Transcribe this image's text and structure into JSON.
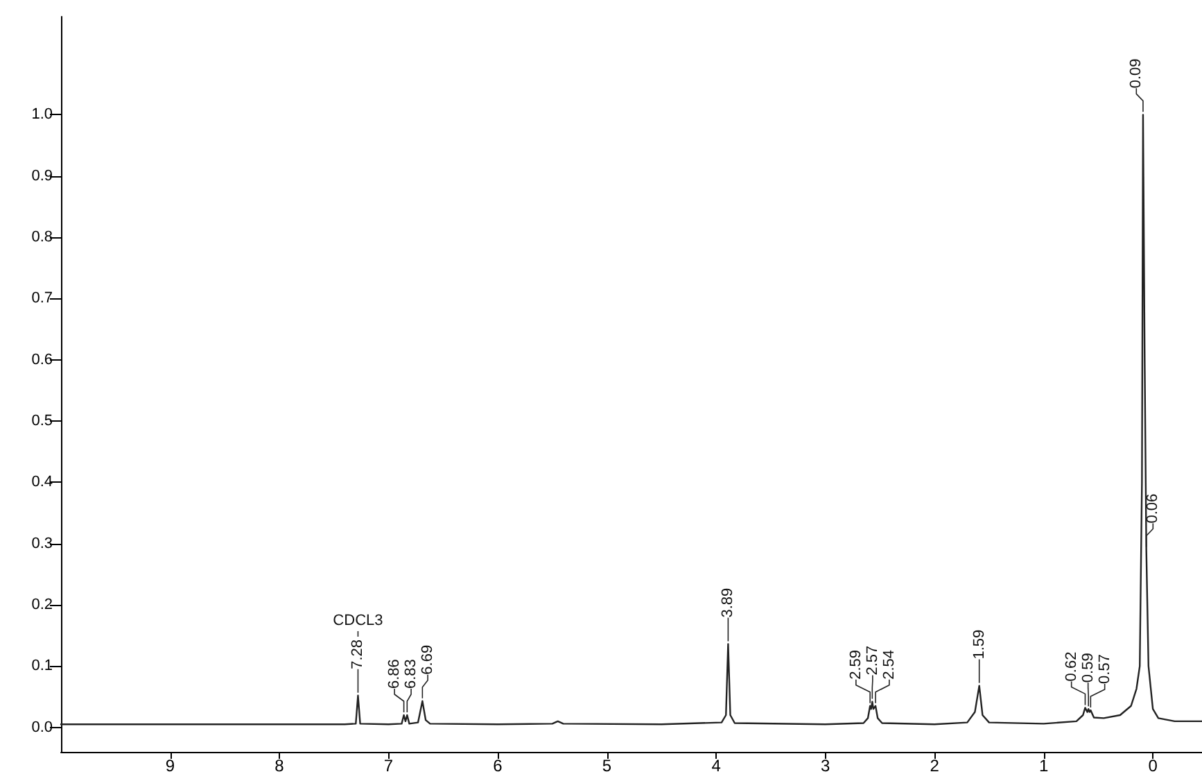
{
  "chart_data": {
    "type": "line",
    "xlim": [
      10,
      -0.45
    ],
    "xticks": [
      9,
      8,
      7,
      6,
      5,
      4,
      3,
      2,
      1,
      0
    ],
    "ylim": [
      -0.04,
      1.16
    ],
    "yticks": [
      {
        "value": 0,
        "label": "0.0"
      },
      0.1,
      0.2,
      0.3,
      0.4,
      0.5,
      0.6,
      0.7,
      0.8,
      0.9,
      {
        "value": 1,
        "label": "1.0"
      }
    ],
    "grid": false,
    "marker": "none",
    "line_style": "solid",
    "series": [
      {
        "color": "#222222",
        "x": [
          10.0,
          9.0,
          8.0,
          7.4,
          7.3,
          7.28,
          7.26,
          7.0,
          6.88,
          6.86,
          6.845,
          6.83,
          6.81,
          6.73,
          6.69,
          6.66,
          6.62,
          6.0,
          5.5,
          5.45,
          5.4,
          4.5,
          3.95,
          3.91,
          3.89,
          3.87,
          3.83,
          3.0,
          2.65,
          2.61,
          2.59,
          2.58,
          2.57,
          2.56,
          2.54,
          2.52,
          2.48,
          2.0,
          1.7,
          1.63,
          1.59,
          1.56,
          1.5,
          1.0,
          0.7,
          0.64,
          0.62,
          0.6,
          0.59,
          0.58,
          0.57,
          0.54,
          0.45,
          0.3,
          0.2,
          0.15,
          0.12,
          0.1,
          0.09,
          0.075,
          0.06,
          0.04,
          0.0,
          -0.05,
          -0.2,
          -0.45
        ],
        "values": [
          0.005,
          0.005,
          0.005,
          0.005,
          0.006,
          0.052,
          0.006,
          0.005,
          0.006,
          0.02,
          0.01,
          0.02,
          0.006,
          0.008,
          0.043,
          0.012,
          0.006,
          0.005,
          0.006,
          0.01,
          0.006,
          0.005,
          0.008,
          0.02,
          0.136,
          0.02,
          0.007,
          0.005,
          0.007,
          0.015,
          0.035,
          0.03,
          0.042,
          0.03,
          0.035,
          0.015,
          0.007,
          0.005,
          0.008,
          0.025,
          0.068,
          0.02,
          0.008,
          0.006,
          0.01,
          0.02,
          0.032,
          0.025,
          0.03,
          0.025,
          0.028,
          0.016,
          0.015,
          0.02,
          0.035,
          0.063,
          0.1,
          0.4,
          1.0,
          0.6,
          0.29,
          0.1,
          0.03,
          0.015,
          0.01,
          0.01
        ]
      }
    ],
    "annotations": [
      {
        "text": "7.28",
        "x": 7.28,
        "y": 0.052
      },
      "CDCL3",
      {
        "text": "6.86",
        "x": 6.86,
        "y": 0.02
      },
      {
        "text": "6.83",
        "x": 6.83,
        "y": 0.02
      },
      {
        "text": "6.69",
        "x": 6.69,
        "y": 0.043
      },
      {
        "text": "3.89",
        "x": 3.89,
        "y": 0.136
      },
      {
        "text": "2.59",
        "x": 2.59,
        "y": 0.035
      },
      {
        "text": "2.57",
        "x": 2.57,
        "y": 0.042
      },
      {
        "text": "2.54",
        "x": 2.54,
        "y": 0.035
      },
      {
        "text": "1.59",
        "x": 1.59,
        "y": 0.068
      },
      {
        "text": "0.62",
        "x": 0.62,
        "y": 0.032
      },
      {
        "text": "0.59",
        "x": 0.59,
        "y": 0.03
      },
      {
        "text": "0.57",
        "x": 0.57,
        "y": 0.028
      },
      {
        "text": "0.09",
        "x": 0.09,
        "y": 1.0
      },
      {
        "text": "0.06",
        "x": 0.06,
        "y": 0.29
      }
    ]
  }
}
